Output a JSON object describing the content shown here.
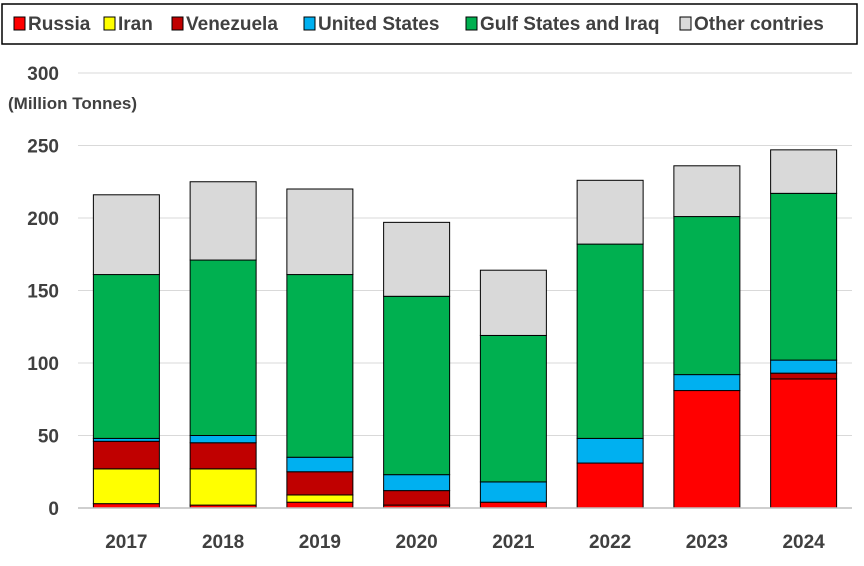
{
  "chart_data": {
    "type": "bar",
    "stacked": true,
    "title": "",
    "xlabel": "",
    "ylabel": "(Million Tonnes)",
    "ylim": [
      0,
      300
    ],
    "yticks": [
      0,
      50,
      100,
      150,
      200,
      250,
      300
    ],
    "grid": true,
    "legend_position": "top",
    "categories": [
      "2017",
      "2018",
      "2019",
      "2020",
      "2021",
      "2022",
      "2023",
      "2024"
    ],
    "series": [
      {
        "name": "Russia",
        "color": "#ff0000",
        "values": [
          3,
          2,
          4,
          2,
          4,
          31,
          81,
          89
        ]
      },
      {
        "name": "Iran",
        "color": "#ffff00",
        "values": [
          24,
          25,
          5,
          0,
          0,
          0,
          0,
          0
        ]
      },
      {
        "name": "Venezuela",
        "color": "#c00000",
        "values": [
          19,
          18,
          16,
          10,
          0,
          0,
          0,
          4
        ]
      },
      {
        "name": "United States",
        "color": "#00b0f0",
        "values": [
          2,
          5,
          10,
          11,
          14,
          17,
          11,
          9
        ]
      },
      {
        "name": "Gulf States and Iraq",
        "color": "#00b050",
        "values": [
          113,
          121,
          126,
          123,
          101,
          134,
          109,
          115
        ]
      },
      {
        "name": "Other contries",
        "color": "#d9d9d9",
        "values": [
          55,
          54,
          59,
          51,
          45,
          44,
          35,
          30
        ]
      }
    ]
  }
}
